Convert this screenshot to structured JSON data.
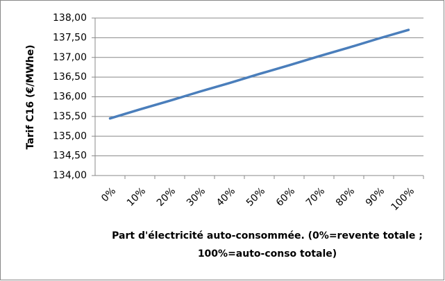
{
  "chart_data": {
    "type": "line",
    "ylabel": "Tarif C16 (€/MWhe)",
    "xlabel": [
      "Part d'électricité auto-consommée. (0%=revente totale ;",
      "100%=auto-conso totale)"
    ],
    "categories": [
      "0%",
      "10%",
      "20%",
      "30%",
      "40%",
      "50%",
      "60%",
      "70%",
      "80%",
      "90%",
      "100%"
    ],
    "series": [
      {
        "color": "#4a7ebb",
        "values": [
          135.45,
          135.68,
          135.9,
          136.13,
          136.35,
          136.58,
          136.8,
          137.03,
          137.25,
          137.48,
          137.7
        ]
      }
    ],
    "ylim": [
      134,
      138
    ],
    "yticks": [
      {
        "value": 134,
        "label": "134,00"
      },
      {
        "value": 134.5,
        "label": "134,50"
      },
      {
        "value": 135,
        "label": "135,00"
      },
      {
        "value": 135.5,
        "label": "135,50"
      },
      {
        "value": 136,
        "label": "136,00"
      },
      {
        "value": 136.5,
        "label": "136,50"
      },
      {
        "value": 137,
        "label": "137,00"
      },
      {
        "value": 137.5,
        "label": "137,50"
      },
      {
        "value": 138,
        "label": "138,00"
      }
    ],
    "grid": true
  }
}
